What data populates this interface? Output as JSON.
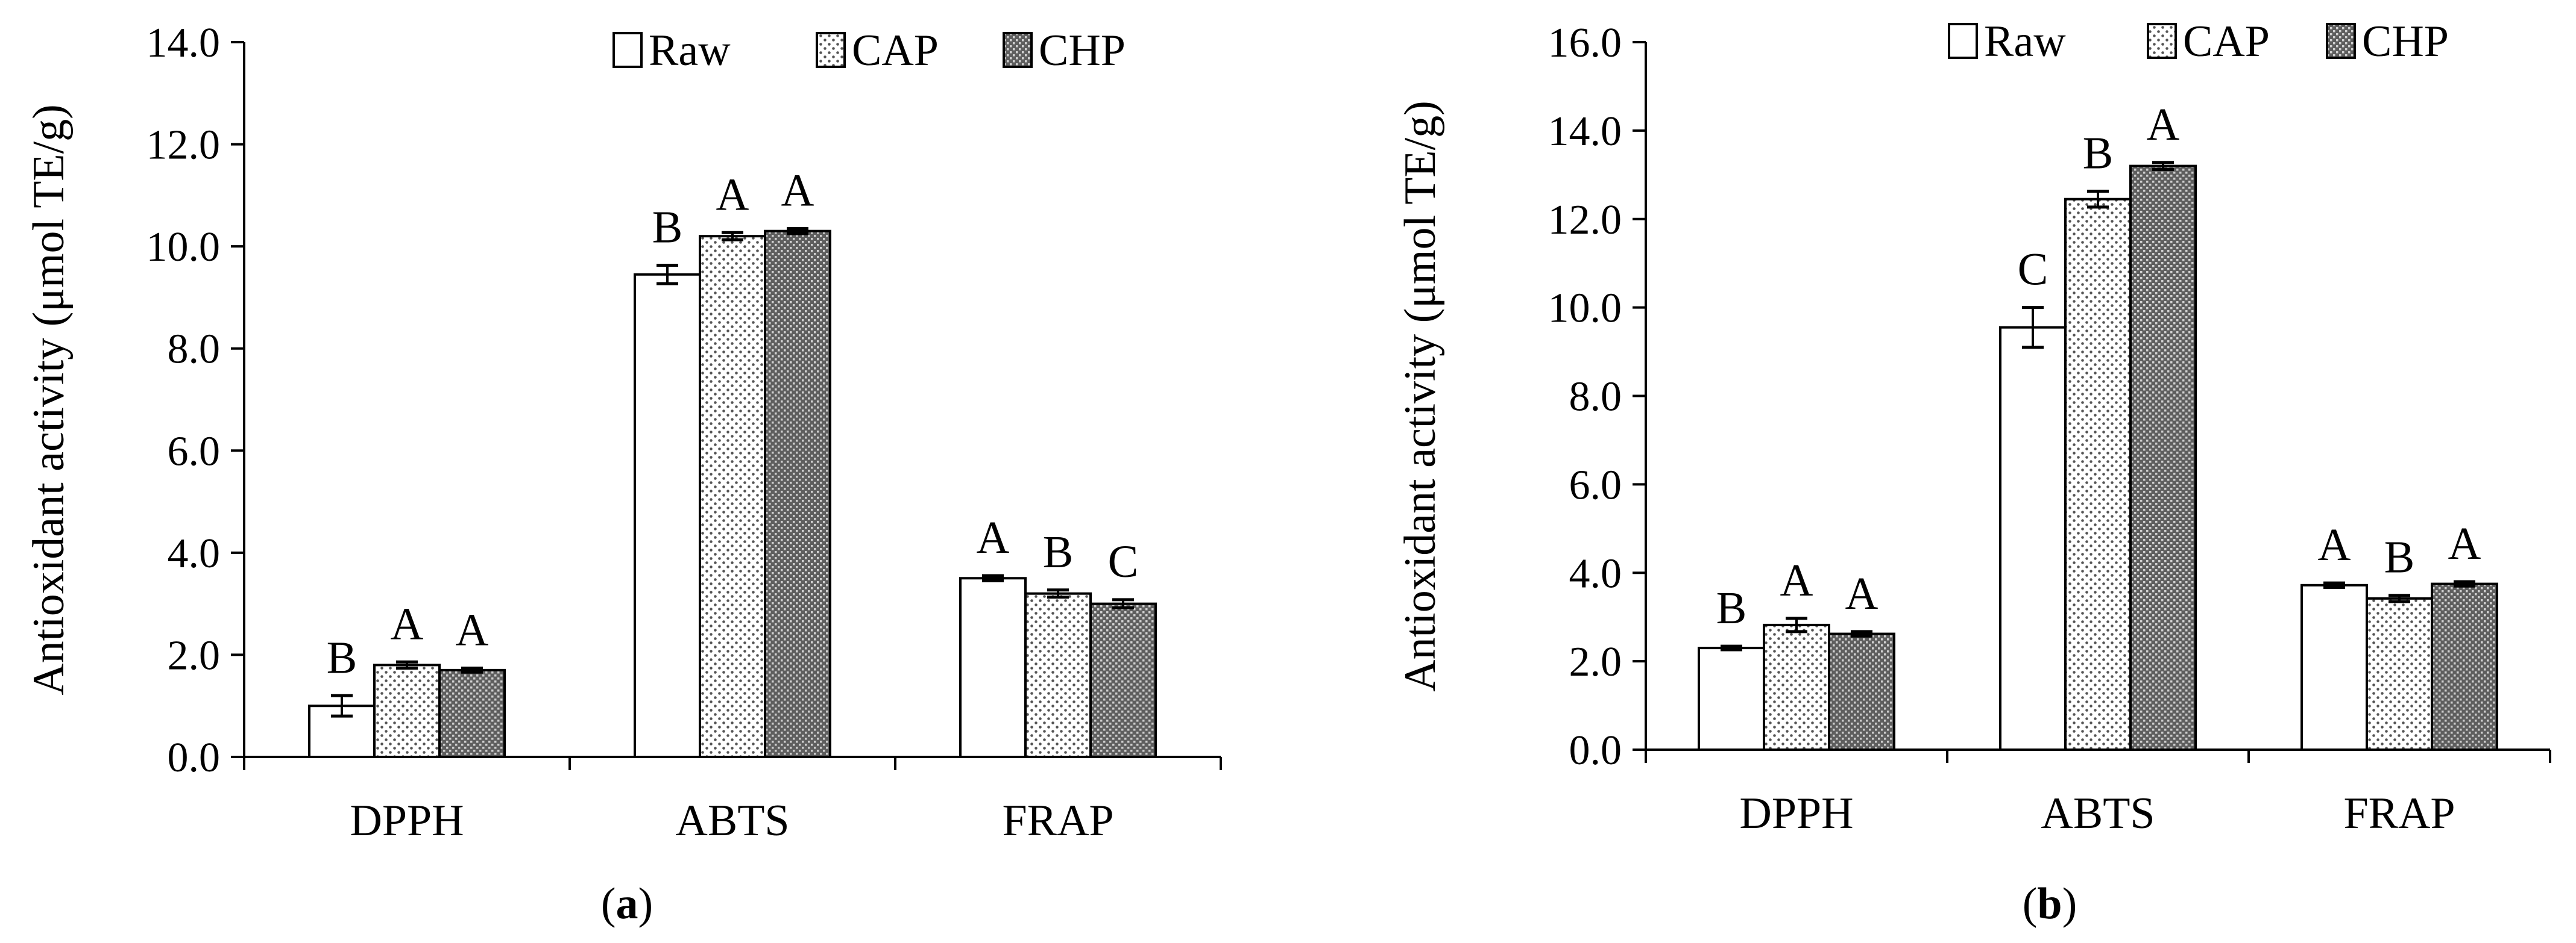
{
  "chart_data": [
    {
      "type": "bar",
      "panel_label": "a",
      "ylabel": "Antioxidant activity (μmol TE/g)",
      "xlabel": "",
      "ylim": [
        0,
        14
      ],
      "ytick_step": 2,
      "ytick_labels": [
        "0.0",
        "2.0",
        "4.0",
        "6.0",
        "8.0",
        "10.0",
        "12.0",
        "14.0"
      ],
      "categories": [
        "DPPH",
        "ABTS",
        "FRAP"
      ],
      "legend": "top-center",
      "grid": false,
      "series": [
        {
          "name": "Raw",
          "values": [
            1.0,
            9.45,
            3.5
          ],
          "errors": [
            0.2,
            0.18,
            0.05
          ],
          "letters": [
            "B",
            "B",
            "A"
          ]
        },
        {
          "name": "CAP",
          "values": [
            1.8,
            10.2,
            3.2
          ],
          "errors": [
            0.06,
            0.07,
            0.07
          ],
          "letters": [
            "A",
            "A",
            "B"
          ]
        },
        {
          "name": "CHP",
          "values": [
            1.7,
            10.3,
            3.0
          ],
          "errors": [
            0.04,
            0.05,
            0.08
          ],
          "letters": [
            "A",
            "A",
            "C"
          ]
        }
      ]
    },
    {
      "type": "bar",
      "panel_label": "b",
      "ylabel": "Antioxidant activity (μmol TE/g)",
      "xlabel": "",
      "ylim": [
        0,
        16
      ],
      "ytick_step": 2,
      "ytick_labels": [
        "0.0",
        "2.0",
        "4.0",
        "6.0",
        "8.0",
        "10.0",
        "12.0",
        "14.0",
        "16.0"
      ],
      "categories": [
        "DPPH",
        "ABTS",
        "FRAP"
      ],
      "legend": "top-center",
      "grid": false,
      "series": [
        {
          "name": "Raw",
          "values": [
            2.3,
            9.55,
            3.72
          ],
          "errors": [
            0.04,
            0.45,
            0.05
          ],
          "letters": [
            "B",
            "C",
            "A"
          ]
        },
        {
          "name": "CAP",
          "values": [
            2.82,
            12.45,
            3.42
          ],
          "errors": [
            0.15,
            0.18,
            0.07
          ],
          "letters": [
            "A",
            "B",
            "B"
          ]
        },
        {
          "name": "CHP",
          "values": [
            2.62,
            13.2,
            3.75
          ],
          "errors": [
            0.05,
            0.08,
            0.05
          ],
          "letters": [
            "A",
            "A",
            "A"
          ]
        }
      ]
    }
  ]
}
